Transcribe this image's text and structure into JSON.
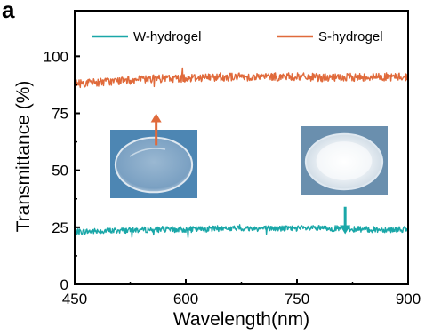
{
  "panel_letter": "a",
  "chart_data": {
    "type": "line",
    "xlabel": "Wavelength(nm)",
    "ylabel": "Transmittance (%)",
    "xlim": [
      450,
      900
    ],
    "ylim": [
      0,
      120
    ],
    "x_ticks": [
      450,
      600,
      750,
      900
    ],
    "y_ticks": [
      0,
      25,
      50,
      75,
      100
    ],
    "legend_position": "top",
    "grid": false,
    "series": [
      {
        "name": "W-hydrogel",
        "color": "#1aa7a8",
        "x": [
          450,
          500,
          550,
          600,
          650,
          700,
          750,
          800,
          850,
          900
        ],
        "values": [
          23.0,
          23.5,
          24.0,
          24.0,
          24.5,
          24.5,
          24.5,
          24.5,
          24.0,
          24.0
        ]
      },
      {
        "name": "S-hydrogel",
        "color": "#e06a3b",
        "x": [
          450,
          500,
          550,
          600,
          650,
          700,
          750,
          800,
          850,
          900
        ],
        "values": [
          88.0,
          89.0,
          90.0,
          90.5,
          91.0,
          91.0,
          91.0,
          90.5,
          91.0,
          91.0
        ]
      }
    ],
    "annotations": [
      {
        "type": "arrow",
        "direction": "up",
        "color": "#e06a3b",
        "x": 560,
        "y_from": 61,
        "y_to": 75
      },
      {
        "type": "arrow",
        "direction": "down",
        "color": "#1aa7a8",
        "x": 815,
        "y_from": 34,
        "y_to": 22
      }
    ],
    "insets": [
      {
        "name": "S-hydrogel-photo",
        "description": "transparent hydrogel disc",
        "x_center": 560,
        "y_center": 44,
        "tint": "#4d86b3"
      },
      {
        "name": "W-hydrogel-photo",
        "description": "white opaque hydrogel disc",
        "x_center": 812,
        "y_center": 50,
        "tint": "#6a8fae"
      }
    ]
  }
}
